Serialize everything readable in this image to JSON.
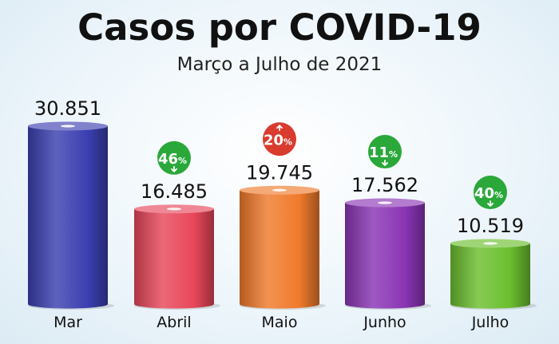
{
  "chart_data": {
    "type": "bar",
    "title": "Casos por COVID-19",
    "subtitle": "Março a Julho de 2021",
    "categories": [
      "Mar",
      "Abril",
      "Maio",
      "Junho",
      "Julho"
    ],
    "values": [
      30851,
      16485,
      19745,
      17562,
      10519
    ],
    "value_labels": [
      "30.851",
      "16.485",
      "19.745",
      "17.562",
      "10.519"
    ],
    "changes": [
      null,
      {
        "value": "46",
        "unit": "%",
        "direction": "down"
      },
      {
        "value": "20",
        "unit": "%",
        "direction": "up"
      },
      {
        "value": "11",
        "unit": "%",
        "direction": "down"
      },
      {
        "value": "40",
        "unit": "%",
        "direction": "down"
      }
    ],
    "ylim": [
      0,
      30851
    ],
    "bar_colors": [
      "#3b3fb0",
      "#e8475a",
      "#f07a2c",
      "#8a35b5",
      "#6bbf2e"
    ],
    "badge_colors": {
      "down": "#2aa83a",
      "up": "#d93b2e"
    },
    "xlabel": "",
    "ylabel": ""
  }
}
